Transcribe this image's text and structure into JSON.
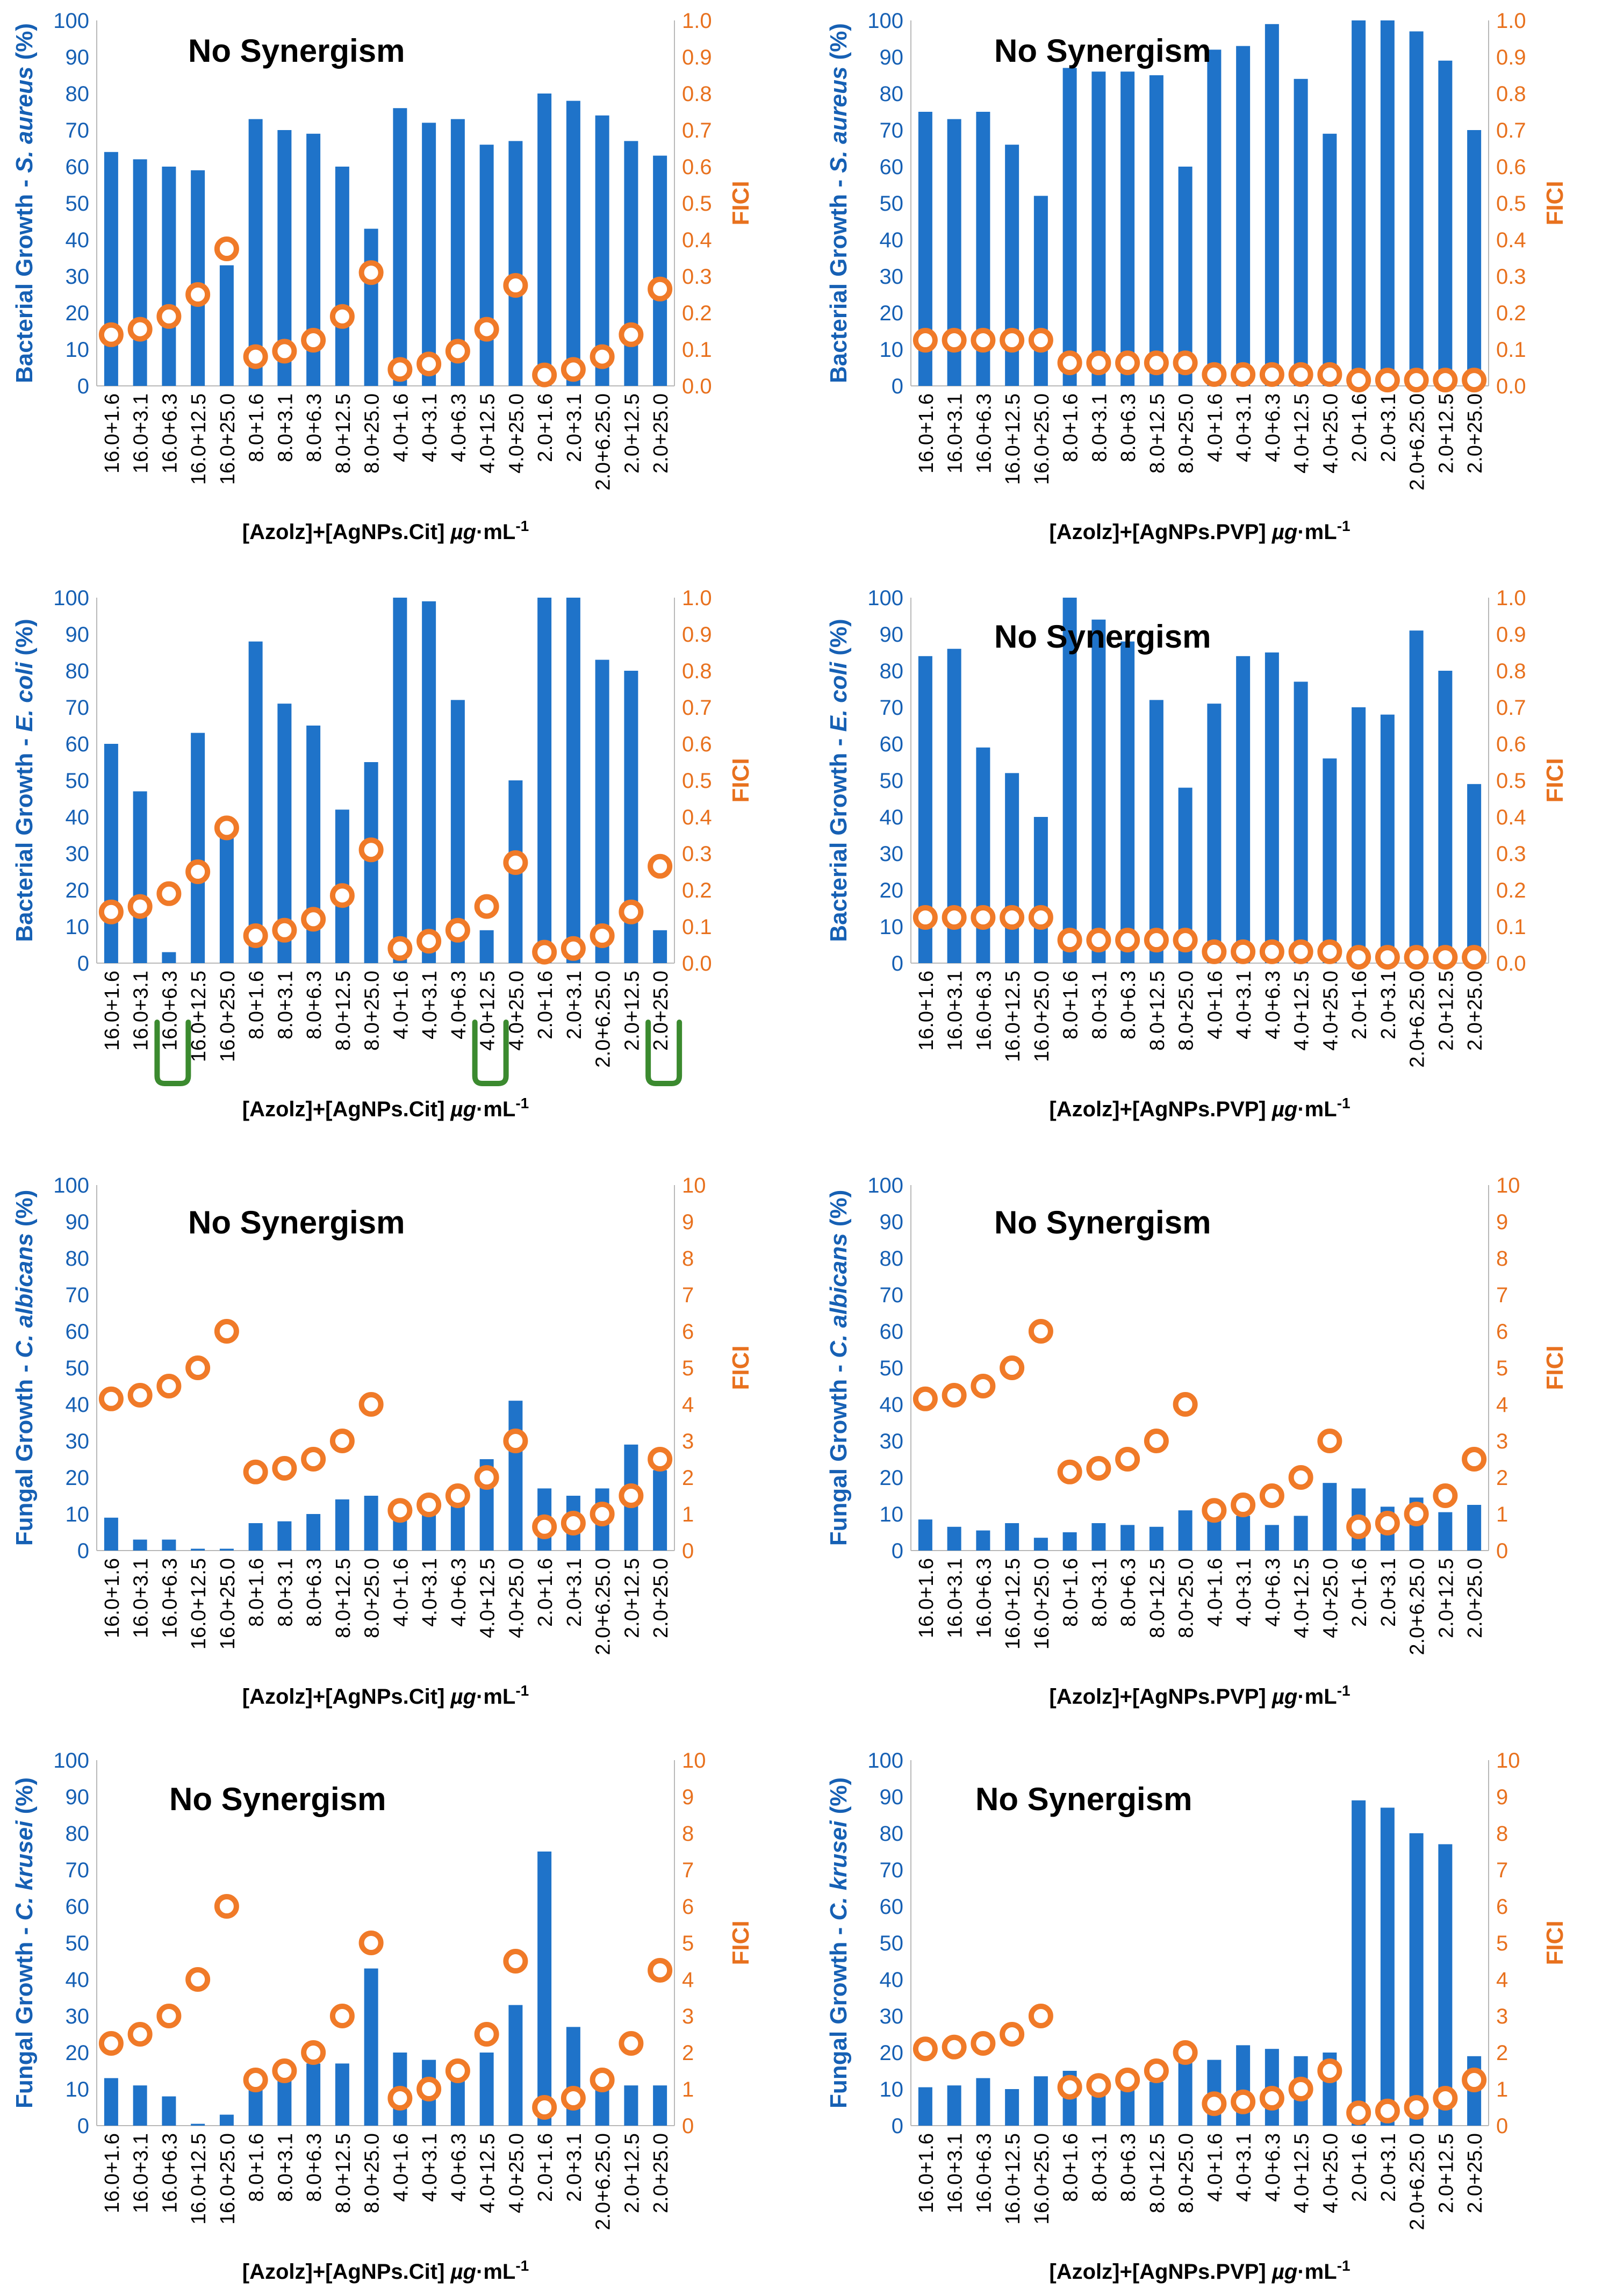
{
  "colors": {
    "bar": "#1f73c9",
    "point": "#f07a28",
    "point_fill": "#ffffff",
    "left_axis_text": "#1660b4",
    "right_axis_text": "#e8711e",
    "axis_line": "#b8b8b8",
    "marker": "#3b8a2f",
    "title_text": "#000000"
  },
  "chart_data": [
    {
      "id": "p1",
      "type": "bar",
      "title": "No Synergism",
      "categories": [
        "16.0+1.6",
        "16.0+3.1",
        "16.0+6.3",
        "16.0+12.5",
        "16.0+25.0",
        "8.0+1.6",
        "8.0+3.1",
        "8.0+6.3",
        "8.0+12.5",
        "8.0+25.0",
        "4.0+1.6",
        "4.0+3.1",
        "4.0+6.3",
        "4.0+12.5",
        "4.0+25.0",
        "2.0+1.6",
        "2.0+3.1",
        "2.0+6.25.0",
        "2.0+12.5",
        "2.0+25.0"
      ],
      "xlabel": "[Azolz]+[AgNPs.Cit] µg·mL-1",
      "ylabel": "Bacterial Growth - S. aureus (%)",
      "y2label": "FICI",
      "ylim": [
        0,
        100
      ],
      "yticks": [
        "0",
        "10",
        "20",
        "30",
        "40",
        "50",
        "60",
        "70",
        "80",
        "90",
        "100"
      ],
      "y2lim": [
        0,
        1
      ],
      "y2ticks": [
        "0.0",
        "0.1",
        "0.2",
        "0.3",
        "0.4",
        "0.5",
        "0.6",
        "0.7",
        "0.8",
        "0.9",
        "1.0"
      ],
      "series": [
        {
          "name": "Growth",
          "axis": "left",
          "values": [
            64,
            62,
            60,
            59,
            33,
            73,
            70,
            69,
            60,
            43,
            76,
            72,
            73,
            66,
            67,
            80,
            78,
            74,
            67,
            63
          ]
        },
        {
          "name": "FICI",
          "axis": "right",
          "values": [
            0.14,
            0.155,
            0.19,
            0.25,
            0.375,
            0.08,
            0.095,
            0.125,
            0.19,
            0.31,
            0.045,
            0.06,
            0.095,
            0.155,
            0.275,
            0.03,
            0.045,
            0.08,
            0.14,
            0.265
          ]
        }
      ]
    },
    {
      "id": "p2",
      "type": "bar",
      "title": "No Synergism",
      "categories": [
        "16.0+1.6",
        "16.0+3.1",
        "16.0+6.3",
        "16.0+12.5",
        "16.0+25.0",
        "8.0+1.6",
        "8.0+3.1",
        "8.0+6.3",
        "8.0+12.5",
        "8.0+25.0",
        "4.0+1.6",
        "4.0+3.1",
        "4.0+6.3",
        "4.0+12.5",
        "4.0+25.0",
        "2.0+1.6",
        "2.0+3.1",
        "2.0+6.25.0",
        "2.0+12.5",
        "2.0+25.0"
      ],
      "xlabel": "[Azolz]+[AgNPs.PVP] µg·mL-1",
      "ylabel": "Bacterial Growth - S. aureus (%)",
      "y2label": "FICI",
      "ylim": [
        0,
        100
      ],
      "yticks": [
        "0",
        "10",
        "20",
        "30",
        "40",
        "50",
        "60",
        "70",
        "80",
        "90",
        "100"
      ],
      "y2lim": [
        0,
        1
      ],
      "y2ticks": [
        "0.0",
        "0.1",
        "0.2",
        "0.3",
        "0.4",
        "0.5",
        "0.6",
        "0.7",
        "0.8",
        "0.9",
        "1.0"
      ],
      "series": [
        {
          "name": "Growth",
          "axis": "left",
          "values": [
            75,
            73,
            75,
            66,
            52,
            87,
            86,
            86,
            85,
            60,
            92,
            93,
            99,
            84,
            69,
            100,
            100,
            97,
            89,
            70
          ]
        },
        {
          "name": "FICI",
          "axis": "right",
          "values": [
            0.125,
            0.125,
            0.125,
            0.125,
            0.125,
            0.063,
            0.063,
            0.063,
            0.063,
            0.063,
            0.031,
            0.031,
            0.031,
            0.031,
            0.031,
            0.016,
            0.016,
            0.016,
            0.016,
            0.016
          ]
        }
      ]
    },
    {
      "id": "p3",
      "type": "bar",
      "title": "",
      "categories": [
        "16.0+1.6",
        "16.0+3.1",
        "16.0+6.3",
        "16.0+12.5",
        "16.0+25.0",
        "8.0+1.6",
        "8.0+3.1",
        "8.0+6.3",
        "8.0+12.5",
        "8.0+25.0",
        "4.0+1.6",
        "4.0+3.1",
        "4.0+6.3",
        "4.0+12.5",
        "4.0+25.0",
        "2.0+1.6",
        "2.0+3.1",
        "2.0+6.25.0",
        "2.0+12.5",
        "2.0+25.0"
      ],
      "xlabel": "[Azolz]+[AgNPs.Cit] µg·mL-1",
      "ylabel": "Bacterial Growth - E. coli (%)",
      "y2label": "FICI",
      "ylim": [
        0,
        100
      ],
      "yticks": [
        "0",
        "10",
        "20",
        "30",
        "40",
        "50",
        "60",
        "70",
        "80",
        "90",
        "100"
      ],
      "y2lim": [
        0,
        1
      ],
      "y2ticks": [
        "0.0",
        "0.1",
        "0.2",
        "0.3",
        "0.4",
        "0.5",
        "0.6",
        "0.7",
        "0.8",
        "0.9",
        "1.0"
      ],
      "highlighted_categories": [
        "16.0+6.3",
        "4.0+12.5",
        "2.0+25.0"
      ],
      "series": [
        {
          "name": "Growth",
          "axis": "left",
          "values": [
            60,
            47,
            3,
            63,
            36,
            88,
            71,
            65,
            42,
            55,
            100,
            99,
            72,
            9,
            50,
            100,
            100,
            83,
            80,
            9
          ]
        },
        {
          "name": "FICI",
          "axis": "right",
          "values": [
            0.14,
            0.155,
            0.19,
            0.25,
            0.37,
            0.075,
            0.09,
            0.12,
            0.185,
            0.31,
            0.04,
            0.06,
            0.09,
            0.155,
            0.275,
            0.03,
            0.04,
            0.075,
            0.14,
            0.265
          ]
        }
      ]
    },
    {
      "id": "p4",
      "type": "bar",
      "title": "No Synergism",
      "categories": [
        "16.0+1.6",
        "16.0+3.1",
        "16.0+6.3",
        "16.0+12.5",
        "16.0+25.0",
        "8.0+1.6",
        "8.0+3.1",
        "8.0+6.3",
        "8.0+12.5",
        "8.0+25.0",
        "4.0+1.6",
        "4.0+3.1",
        "4.0+6.3",
        "4.0+12.5",
        "4.0+25.0",
        "2.0+1.6",
        "2.0+3.1",
        "2.0+6.25.0",
        "2.0+12.5",
        "2.0+25.0"
      ],
      "xlabel": "[Azolz]+[AgNPs.PVP] µg·mL-1",
      "ylabel": "Bacterial Growth - E. coli (%)",
      "y2label": "FICI",
      "ylim": [
        0,
        100
      ],
      "yticks": [
        "0",
        "10",
        "20",
        "30",
        "40",
        "50",
        "60",
        "70",
        "80",
        "90",
        "100"
      ],
      "y2lim": [
        0,
        1
      ],
      "y2ticks": [
        "0.0",
        "0.1",
        "0.2",
        "0.3",
        "0.4",
        "0.5",
        "0.6",
        "0.7",
        "0.8",
        "0.9",
        "1.0"
      ],
      "series": [
        {
          "name": "Growth",
          "axis": "left",
          "values": [
            84,
            86,
            59,
            52,
            40,
            100,
            94,
            88,
            72,
            48,
            71,
            84,
            85,
            77,
            56,
            70,
            68,
            91,
            80,
            49
          ]
        },
        {
          "name": "FICI",
          "axis": "right",
          "values": [
            0.125,
            0.125,
            0.125,
            0.125,
            0.125,
            0.063,
            0.063,
            0.063,
            0.063,
            0.063,
            0.031,
            0.031,
            0.031,
            0.031,
            0.031,
            0.016,
            0.016,
            0.016,
            0.016,
            0.016
          ]
        }
      ]
    },
    {
      "id": "p5",
      "type": "bar",
      "title": "No Synergism",
      "categories": [
        "16.0+1.6",
        "16.0+3.1",
        "16.0+6.3",
        "16.0+12.5",
        "16.0+25.0",
        "8.0+1.6",
        "8.0+3.1",
        "8.0+6.3",
        "8.0+12.5",
        "8.0+25.0",
        "4.0+1.6",
        "4.0+3.1",
        "4.0+6.3",
        "4.0+12.5",
        "4.0+25.0",
        "2.0+1.6",
        "2.0+3.1",
        "2.0+6.25.0",
        "2.0+12.5",
        "2.0+25.0"
      ],
      "xlabel": "[Azolz]+[AgNPs.Cit] µg·mL-1",
      "ylabel": "Fungal Growth - C. albicans (%)",
      "y2label": "FICI",
      "ylim": [
        0,
        100
      ],
      "yticks": [
        "0",
        "10",
        "20",
        "30",
        "40",
        "50",
        "60",
        "70",
        "80",
        "90",
        "100"
      ],
      "y2lim": [
        0,
        10
      ],
      "y2ticks": [
        "0",
        "1",
        "2",
        "3",
        "4",
        "5",
        "6",
        "7",
        "8",
        "9",
        "10"
      ],
      "series": [
        {
          "name": "Growth",
          "axis": "left",
          "values": [
            9,
            3,
            3,
            0.5,
            0.5,
            7.5,
            8,
            10,
            14,
            15,
            10,
            13,
            15,
            25,
            41,
            17,
            15,
            17,
            29,
            22
          ]
        },
        {
          "name": "FICI",
          "axis": "right",
          "values": [
            4.15,
            4.25,
            4.5,
            5,
            6,
            2.15,
            2.25,
            2.5,
            3,
            4,
            1.1,
            1.25,
            1.5,
            2,
            3,
            0.65,
            0.75,
            1,
            1.5,
            2.5
          ]
        }
      ]
    },
    {
      "id": "p6",
      "type": "bar",
      "title": "No Synergism",
      "categories": [
        "16.0+1.6",
        "16.0+3.1",
        "16.0+6.3",
        "16.0+12.5",
        "16.0+25.0",
        "8.0+1.6",
        "8.0+3.1",
        "8.0+6.3",
        "8.0+12.5",
        "8.0+25.0",
        "4.0+1.6",
        "4.0+3.1",
        "4.0+6.3",
        "4.0+12.5",
        "4.0+25.0",
        "2.0+1.6",
        "2.0+3.1",
        "2.0+6.25.0",
        "2.0+12.5",
        "2.0+25.0"
      ],
      "xlabel": "[Azolz]+[AgNPs.PVP] µg·mL-1",
      "ylabel": "Fungal Growth - C. albicans (%)",
      "y2label": "FICI",
      "ylim": [
        0,
        100
      ],
      "yticks": [
        "0",
        "10",
        "20",
        "30",
        "40",
        "50",
        "60",
        "70",
        "80",
        "90",
        "100"
      ],
      "y2lim": [
        0,
        10
      ],
      "y2ticks": [
        "0",
        "1",
        "2",
        "3",
        "4",
        "5",
        "6",
        "7",
        "8",
        "9",
        "10"
      ],
      "series": [
        {
          "name": "Growth",
          "axis": "left",
          "values": [
            8.5,
            6.5,
            5.5,
            7.5,
            3.5,
            5,
            7.5,
            7,
            6.5,
            11,
            10,
            9.5,
            7,
            9.5,
            18.5,
            17,
            12,
            14.5,
            10.5,
            12.5
          ]
        },
        {
          "name": "FICI",
          "axis": "right",
          "values": [
            4.15,
            4.25,
            4.5,
            5,
            6,
            2.15,
            2.25,
            2.5,
            3,
            4,
            1.1,
            1.25,
            1.5,
            2,
            3,
            0.65,
            0.75,
            1,
            1.5,
            2.5
          ]
        }
      ]
    },
    {
      "id": "p7",
      "type": "bar",
      "title": "No Synergism",
      "categories": [
        "16.0+1.6",
        "16.0+3.1",
        "16.0+6.3",
        "16.0+12.5",
        "16.0+25.0",
        "8.0+1.6",
        "8.0+3.1",
        "8.0+6.3",
        "8.0+12.5",
        "8.0+25.0",
        "4.0+1.6",
        "4.0+3.1",
        "4.0+6.3",
        "4.0+12.5",
        "4.0+25.0",
        "2.0+1.6",
        "2.0+3.1",
        "2.0+6.25.0",
        "2.0+12.5",
        "2.0+25.0"
      ],
      "xlabel": "[Azolz]+[AgNPs.Cit] µg·mL-1",
      "ylabel": "Fungal Growth - C. krusei (%)",
      "y2label": "FICI",
      "ylim": [
        0,
        100
      ],
      "yticks": [
        "0",
        "10",
        "20",
        "30",
        "40",
        "50",
        "60",
        "70",
        "80",
        "90",
        "100"
      ],
      "y2lim": [
        0,
        10
      ],
      "y2ticks": [
        "0",
        "1",
        "2",
        "3",
        "4",
        "5",
        "6",
        "7",
        "8",
        "9",
        "10"
      ],
      "series": [
        {
          "name": "Growth",
          "axis": "left",
          "values": [
            13,
            11,
            8,
            0.5,
            3,
            13,
            14,
            17,
            17,
            43,
            20,
            18,
            17,
            20,
            33,
            75,
            27,
            12,
            11,
            11
          ]
        },
        {
          "name": "FICI",
          "axis": "right",
          "values": [
            2.25,
            2.5,
            3,
            4,
            6,
            1.25,
            1.5,
            2,
            3,
            5,
            0.75,
            1,
            1.5,
            2.5,
            4.5,
            0.5,
            0.75,
            1.25,
            2.25,
            4.25
          ]
        }
      ]
    },
    {
      "id": "p8",
      "type": "bar",
      "title": "No Synergism",
      "categories": [
        "16.0+1.6",
        "16.0+3.1",
        "16.0+6.3",
        "16.0+12.5",
        "16.0+25.0",
        "8.0+1.6",
        "8.0+3.1",
        "8.0+6.3",
        "8.0+12.5",
        "8.0+25.0",
        "4.0+1.6",
        "4.0+3.1",
        "4.0+6.3",
        "4.0+12.5",
        "4.0+25.0",
        "2.0+1.6",
        "2.0+3.1",
        "2.0+6.25.0",
        "2.0+12.5",
        "2.0+25.0"
      ],
      "xlabel": "[Azolz]+[AgNPs.PVP] µg·mL-1",
      "ylabel": "Fungal Growth - C. krusei (%)",
      "y2label": "FICI",
      "ylim": [
        0,
        100
      ],
      "yticks": [
        "0",
        "10",
        "20",
        "30",
        "40",
        "50",
        "60",
        "70",
        "80",
        "90",
        "100"
      ],
      "y2lim": [
        0,
        10
      ],
      "y2ticks": [
        "0",
        "1",
        "2",
        "3",
        "4",
        "5",
        "6",
        "7",
        "8",
        "9",
        "10"
      ],
      "series": [
        {
          "name": "Growth",
          "axis": "left",
          "values": [
            10.5,
            11,
            13,
            10,
            13.5,
            15,
            12,
            13.5,
            12,
            19,
            18,
            22,
            21,
            19,
            20,
            89,
            87,
            80,
            77,
            19
          ]
        },
        {
          "name": "FICI",
          "axis": "right",
          "values": [
            2.1,
            2.15,
            2.25,
            2.5,
            3,
            1.05,
            1.1,
            1.25,
            1.5,
            2,
            0.6,
            0.65,
            0.75,
            1,
            1.5,
            0.35,
            0.4,
            0.5,
            0.75,
            1.25
          ]
        }
      ]
    }
  ]
}
